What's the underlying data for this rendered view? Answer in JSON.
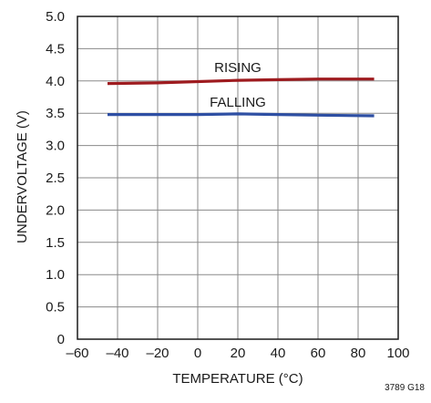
{
  "chart_data": {
    "type": "line",
    "xlabel": "TEMPERATURE (°C)",
    "ylabel": "UNDERVOLTAGE (V)",
    "xlim": [
      -60,
      100
    ],
    "ylim": [
      0,
      5
    ],
    "x_ticks": [
      "–60",
      "–40",
      "–20",
      "0",
      "20",
      "40",
      "60",
      "80",
      "100"
    ],
    "y_ticks": [
      "0",
      "0.5",
      "1.0",
      "1.5",
      "2.0",
      "2.5",
      "3.0",
      "3.5",
      "4.0",
      "4.5",
      "5.0"
    ],
    "grid": true,
    "series": [
      {
        "name": "RISING",
        "color": "#9e1b1f",
        "x": [
          -45,
          -20,
          0,
          20,
          40,
          60,
          88
        ],
        "y": [
          3.96,
          3.97,
          3.99,
          4.01,
          4.02,
          4.03,
          4.03
        ]
      },
      {
        "name": "FALLING",
        "color": "#2e4fa3",
        "x": [
          -45,
          -20,
          0,
          20,
          40,
          60,
          88
        ],
        "y": [
          3.48,
          3.48,
          3.48,
          3.49,
          3.48,
          3.47,
          3.46
        ]
      }
    ],
    "figure_id": "3789 G18"
  }
}
